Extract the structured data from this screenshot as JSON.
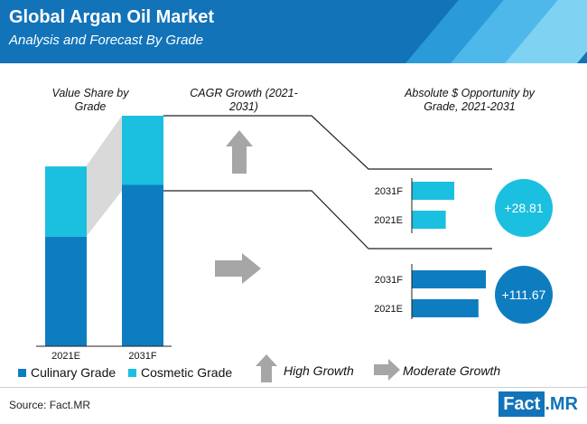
{
  "header": {
    "title": "Global Argan Oil Market",
    "subtitle": "Analysis and Forecast By Grade"
  },
  "labels": {
    "value_share": "Value Share by Grade",
    "cagr": "CAGR Growth (2021-2031)",
    "absolute": "Absolute $ Opportunity by Grade, 2021-2031"
  },
  "legend": {
    "culinary": "Culinary Grade",
    "cosmetic": "Cosmetic Grade",
    "high_growth": "High Growth",
    "moderate_growth": "Moderate Growth"
  },
  "footer": {
    "source": "Source: Fact.MR",
    "logo_box": "Fact",
    "logo_rest": ".MR"
  },
  "colors": {
    "culinary": "#0e7dc0",
    "cosmetic": "#1bbfe0",
    "arrow": "#a6a6a6",
    "header": "#1273b9"
  },
  "chart_data": [
    {
      "type": "bar",
      "stacked": true,
      "categories": [
        "2021E",
        "2031F"
      ],
      "series": [
        {
          "name": "Culinary Grade",
          "values": [
            61,
            70
          ]
        },
        {
          "name": "Cosmetic Grade",
          "values": [
            39,
            30
          ]
        }
      ],
      "relative_heights": [
        0.78,
        1.0
      ]
    },
    {
      "type": "bar",
      "orientation": "horizontal",
      "group": "Cosmetic Grade",
      "categories": [
        "2031F",
        "2021E"
      ],
      "values": [
        1.0,
        0.8
      ],
      "annotation": "+28.81"
    },
    {
      "type": "bar",
      "orientation": "horizontal",
      "group": "Culinary Grade",
      "categories": [
        "2031F",
        "2021E"
      ],
      "values": [
        1.0,
        0.9
      ],
      "annotation": "+111.67"
    }
  ]
}
